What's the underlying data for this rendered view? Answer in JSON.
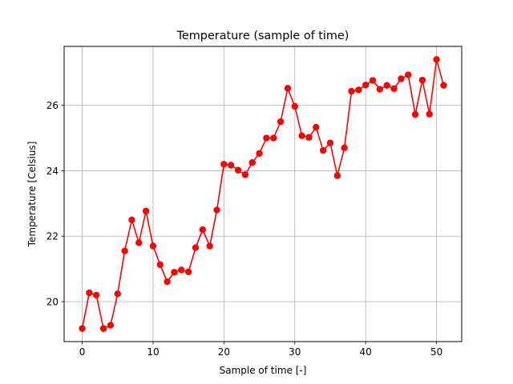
{
  "chart_data": {
    "type": "line",
    "title": "Temperature (sample of time)",
    "xlabel": "Sample of time [-]",
    "ylabel": "Temperature [Celsius]",
    "xlim": [
      -2.55,
      53.55
    ],
    "ylim": [
      18.78,
      27.8
    ],
    "xticks": [
      0,
      10,
      20,
      30,
      40,
      50
    ],
    "yticks": [
      20,
      22,
      24,
      26
    ],
    "grid": true,
    "series": [
      {
        "color": "#ff0000",
        "marker": "circle",
        "x": [
          0,
          1,
          2,
          3,
          4,
          5,
          6,
          7,
          8,
          9,
          10,
          11,
          12,
          13,
          14,
          15,
          16,
          17,
          18,
          19,
          20,
          21,
          22,
          23,
          24,
          25,
          26,
          27,
          28,
          29,
          30,
          31,
          32,
          33,
          34,
          35,
          36,
          37,
          38,
          39,
          40,
          41,
          42,
          43,
          44,
          45,
          46,
          47,
          48,
          49,
          50,
          51
        ],
        "values": [
          19.18,
          20.27,
          20.2,
          19.18,
          19.28,
          20.24,
          21.55,
          22.5,
          21.8,
          22.77,
          21.7,
          21.13,
          20.61,
          20.9,
          20.97,
          20.91,
          21.65,
          22.2,
          21.7,
          22.8,
          24.2,
          24.17,
          24.02,
          23.88,
          24.25,
          24.53,
          25.0,
          25.0,
          25.5,
          26.52,
          25.97,
          25.07,
          25.02,
          25.33,
          24.62,
          24.85,
          23.85,
          24.7,
          26.43,
          26.47,
          26.62,
          26.76,
          26.49,
          26.61,
          26.51,
          26.81,
          26.93,
          25.72,
          26.77,
          25.73,
          27.4,
          26.61
        ]
      }
    ]
  }
}
